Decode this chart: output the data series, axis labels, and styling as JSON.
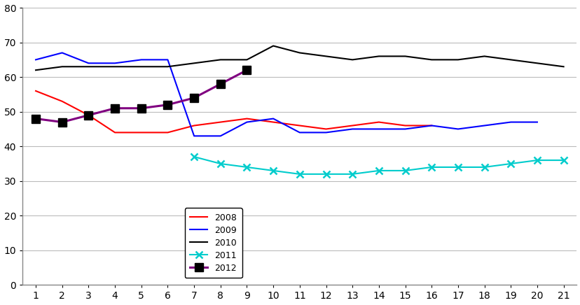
{
  "x": [
    1,
    2,
    3,
    4,
    5,
    6,
    7,
    8,
    9,
    10,
    11,
    12,
    13,
    14,
    15,
    16,
    17,
    18,
    19,
    20,
    21
  ],
  "series_2008": [
    56,
    53,
    49,
    44,
    44,
    44,
    46,
    47,
    48,
    47,
    46,
    45,
    46,
    47,
    46,
    46,
    null,
    null,
    null,
    null,
    null
  ],
  "series_2009": [
    65,
    67,
    64,
    64,
    65,
    65,
    43,
    43,
    47,
    48,
    44,
    44,
    45,
    45,
    45,
    46,
    45,
    46,
    47,
    47,
    null
  ],
  "series_2010": [
    62,
    63,
    63,
    63,
    63,
    63,
    64,
    65,
    65,
    69,
    67,
    66,
    65,
    66,
    66,
    65,
    65,
    66,
    65,
    64,
    63
  ],
  "series_2011": [
    null,
    null,
    null,
    null,
    null,
    null,
    37,
    35,
    34,
    33,
    32,
    32,
    32,
    33,
    33,
    34,
    34,
    34,
    35,
    36,
    36
  ],
  "series_2012": [
    48,
    47,
    49,
    51,
    51,
    52,
    54,
    58,
    62,
    null,
    null,
    null,
    null,
    null,
    null,
    null,
    null,
    null,
    null,
    null,
    null
  ],
  "color_2008": "#ff0000",
  "color_2009": "#0000ff",
  "color_2010": "#000000",
  "color_2011": "#00cccc",
  "color_2012": "#800080",
  "ylim": [
    0,
    80
  ],
  "xlim_min": 0.5,
  "xlim_max": 21.5,
  "yticks": [
    0,
    10,
    20,
    30,
    40,
    50,
    60,
    70,
    80
  ],
  "xticks": [
    1,
    2,
    3,
    4,
    5,
    6,
    7,
    8,
    9,
    10,
    11,
    12,
    13,
    14,
    15,
    16,
    17,
    18,
    19,
    20,
    21
  ],
  "legend_labels": [
    "2008",
    "2009",
    "2010",
    "2011",
    "2012"
  ],
  "background_color": "#ffffff",
  "grid_color": "#bbbbbb",
  "spine_color": "#888888"
}
